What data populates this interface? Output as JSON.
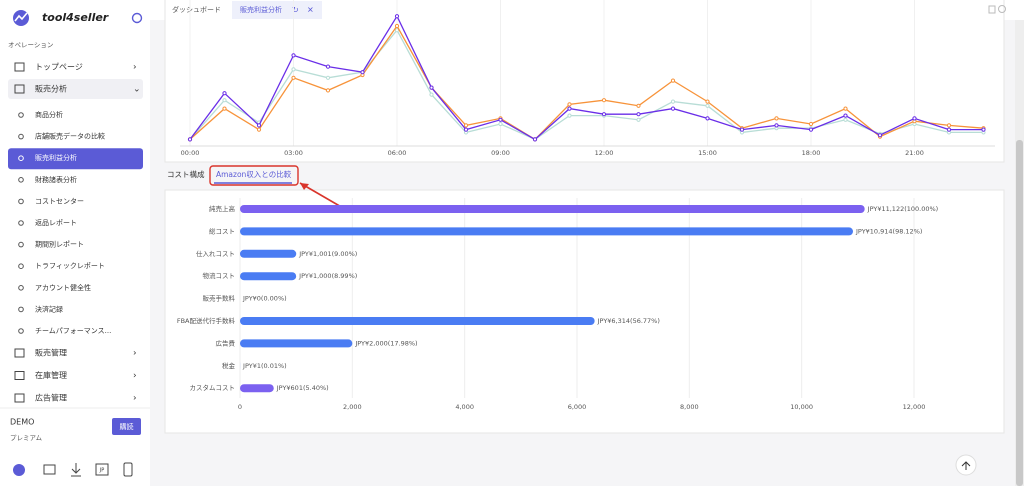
{
  "sidebar": {
    "brand": "tool4seller",
    "section": "オペレーション",
    "top_items": [
      "トップページ",
      "販売分析"
    ],
    "sub_items": [
      "商品分析",
      "店舗販売データの比較",
      "販売利益分析",
      "財務諸表分析",
      "コストセンター",
      "返品レポート",
      "期間別レポート",
      "トラフィックレポート",
      "アカウント健全性",
      "決済記録",
      "チームパフォーマンス..."
    ],
    "active_sub": 2,
    "bottom_items": [
      "販売管理",
      "在庫管理",
      "広告管理"
    ],
    "account": {
      "name": "DEMO",
      "plan": "プレミアム",
      "button": "購読"
    },
    "region": "JP"
  },
  "tabs": [
    "ダッシュボード",
    "販売利益分析"
  ],
  "active_tab": 1,
  "subtabs": [
    "コスト構成",
    "Amazon収入との比較"
  ],
  "active_subtab": 1,
  "line_chart": {
    "type": "line",
    "categories": [
      "00:00",
      null,
      null,
      "03:00",
      null,
      null,
      "06:00",
      null,
      null,
      "09:00",
      null,
      null,
      "12:00",
      null,
      null,
      "15:00",
      null,
      null,
      "18:00",
      null,
      null,
      "21:00",
      null,
      null
    ],
    "ylim": [
      0,
      100
    ],
    "series": [
      {
        "color": "#b8ddd6",
        "values": [
          4,
          32,
          16,
          54,
          48,
          52,
          82,
          36,
          9,
          15,
          4,
          21,
          21,
          18,
          31,
          28,
          9,
          12,
          12,
          18,
          8,
          15,
          9,
          9
        ]
      },
      {
        "color": "#f7933a",
        "values": [
          4,
          26,
          11,
          48,
          39,
          50,
          85,
          41,
          14,
          19,
          4,
          29,
          32,
          28,
          46,
          31,
          12,
          19,
          15,
          26,
          6,
          17,
          14,
          12
        ]
      },
      {
        "color": "#6a2ee8",
        "values": [
          4,
          37,
          14,
          64,
          56,
          52,
          92,
          41,
          11,
          18,
          4,
          26,
          22,
          22,
          26,
          19,
          11,
          14,
          11,
          21,
          7,
          19,
          11,
          11
        ]
      }
    ]
  },
  "bar_chart": {
    "type": "bar",
    "orientation": "horizontal",
    "categories": [
      "純売上高",
      "総コスト",
      "仕入れコスト",
      "物流コスト",
      "販売手数料",
      "FBA配送代行手数料",
      "広告費",
      "税金",
      "カスタムコスト"
    ],
    "values": [
      11122,
      10914,
      1001,
      1000,
      0,
      6314,
      2000,
      1,
      601
    ],
    "value_labels": [
      "JPY¥11,122(100.00%)",
      "JPY¥10,914(98.12%)",
      "JPY¥1,001(9.00%)",
      "JPY¥1,000(8.99%)",
      "JPY¥0(0.00%)",
      "JPY¥6,314(56.77%)",
      "JPY¥2,000(17.98%)",
      "JPY¥1(0.01%)",
      "JPY¥601(5.40%)"
    ],
    "colors": [
      "#7b61f0",
      "#4a7cf3",
      "#4a7cf3",
      "#4a7cf3",
      "#4a7cf3",
      "#4a7cf3",
      "#4a7cf3",
      "#4a7cf3",
      "#7b61f0"
    ],
    "xlim": [
      0,
      12000
    ],
    "xticks": [
      0,
      {
        "value": 2000,
        "label": "2,000"
      },
      {
        "value": 4000,
        "label": "4,000"
      },
      {
        "value": 6000,
        "label": "6,000"
      },
      {
        "value": 8000,
        "label": "8,000"
      },
      {
        "value": 10000,
        "label": "10,000"
      },
      {
        "value": 12000,
        "label": "12,000"
      }
    ],
    "grid": true
  }
}
